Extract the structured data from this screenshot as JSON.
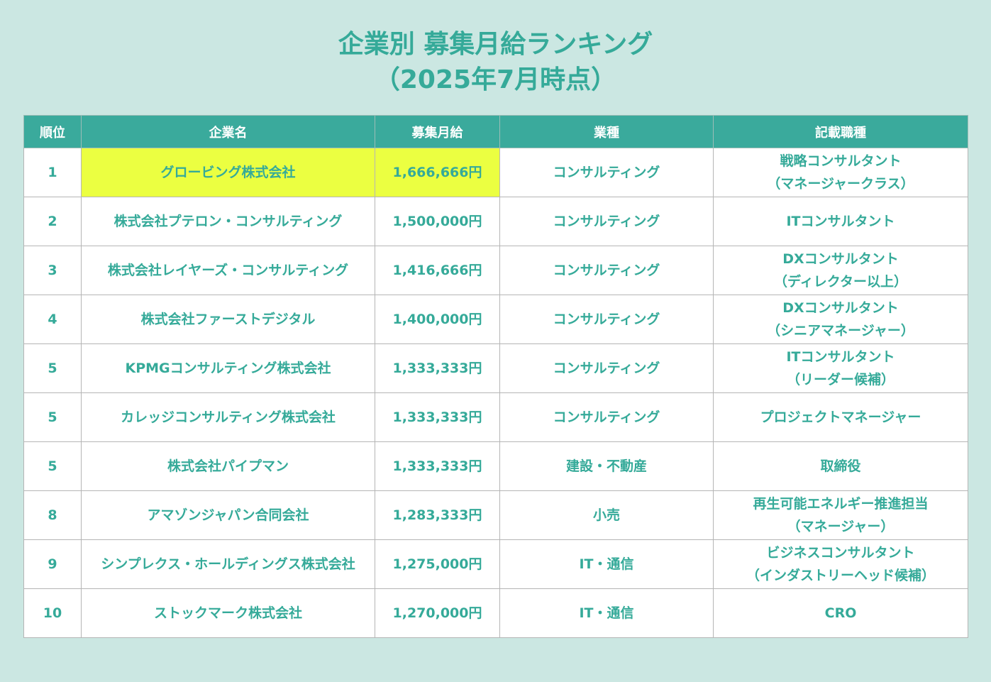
{
  "title": {
    "line1": "企業別 募集月給ランキング",
    "line2": "（2025年7月時点）"
  },
  "columns": [
    "順位",
    "企業名",
    "募集月給",
    "業種",
    "記載職種"
  ],
  "rows": [
    {
      "rank": "1",
      "company": "グロービング株式会社",
      "salary": "1,666,666円",
      "industry": "コンサルティング",
      "job_line1": "戦略コンサルタント",
      "job_line2": "（マネージャークラス）",
      "highlighted": true
    },
    {
      "rank": "2",
      "company": "株式会社プテロン・コンサルティング",
      "salary": "1,500,000円",
      "industry": "コンサルティング",
      "job_line1": "ITコンサルタント",
      "job_line2": ""
    },
    {
      "rank": "3",
      "company": "株式会社レイヤーズ・コンサルティング",
      "salary": "1,416,666円",
      "industry": "コンサルティング",
      "job_line1": "DXコンサルタント",
      "job_line2": "（ディレクター以上）"
    },
    {
      "rank": "4",
      "company": "株式会社ファーストデジタル",
      "salary": "1,400,000円",
      "industry": "コンサルティング",
      "job_line1": "DXコンサルタント",
      "job_line2": "（シニアマネージャー）"
    },
    {
      "rank": "5",
      "company": "KPMGコンサルティング株式会社",
      "salary": "1,333,333円",
      "industry": "コンサルティング",
      "job_line1": "ITコンサルタント",
      "job_line2": "（リーダー候補）"
    },
    {
      "rank": "5",
      "company": "カレッジコンサルティング株式会社",
      "salary": "1,333,333円",
      "industry": "コンサルティング",
      "job_line1": "プロジェクトマネージャー",
      "job_line2": ""
    },
    {
      "rank": "5",
      "company": "株式会社パイプマン",
      "salary": "1,333,333円",
      "industry": "建設・不動産",
      "job_line1": "取締役",
      "job_line2": ""
    },
    {
      "rank": "8",
      "company": "アマゾンジャパン合同会社",
      "salary": "1,283,333円",
      "industry": "小売",
      "job_line1": "再生可能エネルギー推進担当",
      "job_line2": "（マネージャー）"
    },
    {
      "rank": "9",
      "company": "シンプレクス・ホールディングス株式会社",
      "salary": "1,275,000円",
      "industry": "IT・通信",
      "job_line1": "ビジネスコンサルタント",
      "job_line2": "（インダストリーヘッド候補）"
    },
    {
      "rank": "10",
      "company": "ストックマーク株式会社",
      "salary": "1,270,000円",
      "industry": "IT・通信",
      "job_line1": "CRO",
      "job_line2": ""
    }
  ],
  "colors": {
    "background": "#cbe7e2",
    "header": "#3aaa9c",
    "text": "#35aa99",
    "highlight": "#ebff41"
  }
}
